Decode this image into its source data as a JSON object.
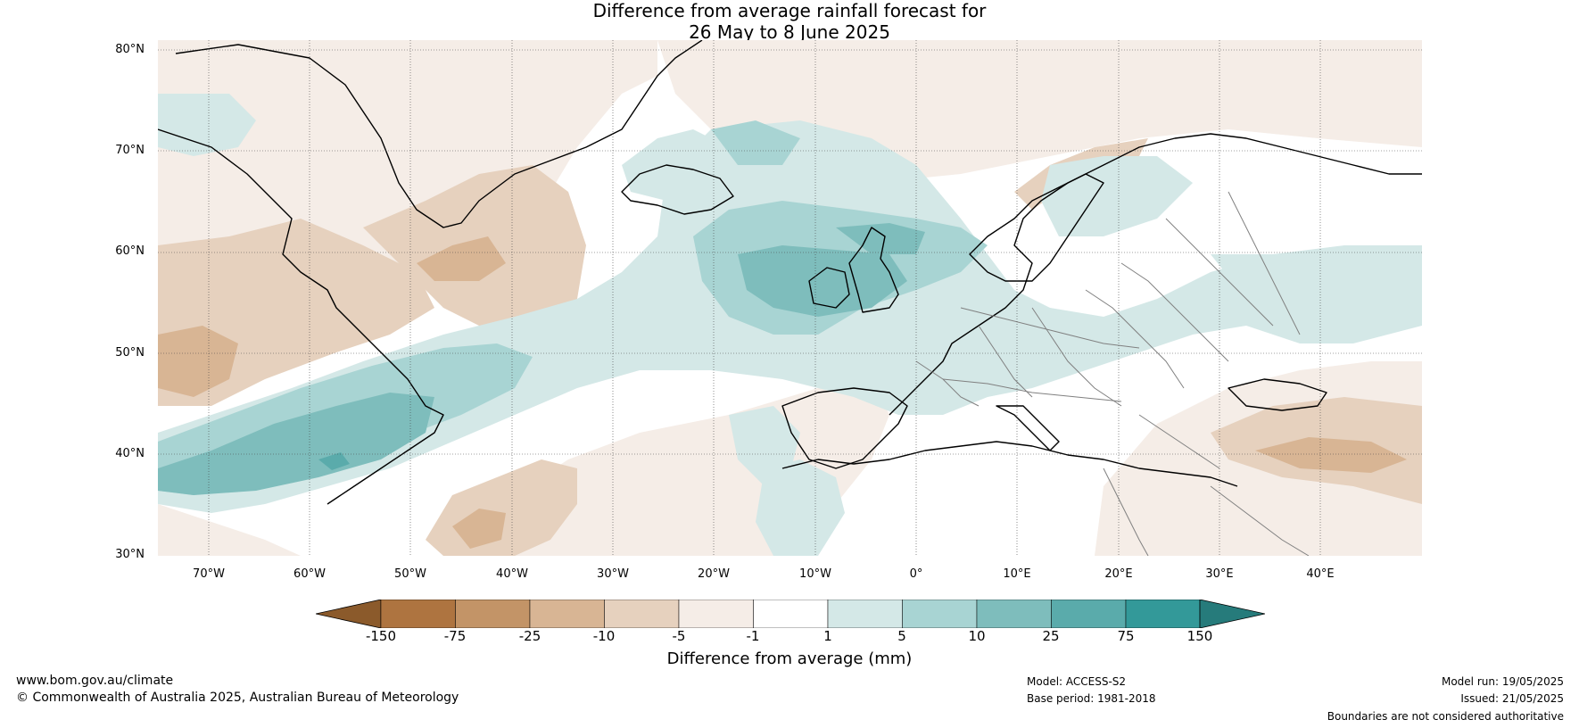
{
  "title": {
    "line1": "Difference from average rainfall forecast for",
    "line2": "26 May to 8 June 2025"
  },
  "map": {
    "lat_labels": [
      "80°N",
      "70°N",
      "60°N",
      "50°N",
      "40°N",
      "30°N"
    ],
    "lon_labels": [
      "70°W",
      "60°W",
      "50°W",
      "40°W",
      "30°W",
      "20°W",
      "10°W",
      "0°",
      "10°E",
      "20°E",
      "30°E",
      "40°E"
    ],
    "lon_range": [
      -75,
      50
    ],
    "lat_range": [
      30,
      81
    ],
    "colors": {
      "ocean_background": "#ffffff",
      "coastline": "#000000",
      "borders": "#808080",
      "gridlines": "#333333"
    }
  },
  "colorbar": {
    "ticks": [
      "-150",
      "-75",
      "-25",
      "-10",
      "-5",
      "-1",
      "1",
      "5",
      "10",
      "25",
      "75",
      "150"
    ],
    "colors": [
      "#8b5a2b",
      "#ae7440",
      "#c39467",
      "#d8b594",
      "#e6d1be",
      "#f5ede7",
      "#ffffff",
      "#d4e8e7",
      "#a8d4d3",
      "#7ebdbc",
      "#5aabab",
      "#339999",
      "#267b7b"
    ],
    "label": "Difference from average (mm)"
  },
  "footer": {
    "url": "www.bom.gov.au/climate",
    "copyright": "© Commonwealth of Australia 2025, Australian Bureau of Meteorology",
    "model": "Model: ACCESS-S2",
    "base_period": "Base period: 1981-2018",
    "model_run": "Model run: 19/05/2025",
    "issued": "Issued: 21/05/2025",
    "disclaimer": "Boundaries are not considered authoritative"
  }
}
